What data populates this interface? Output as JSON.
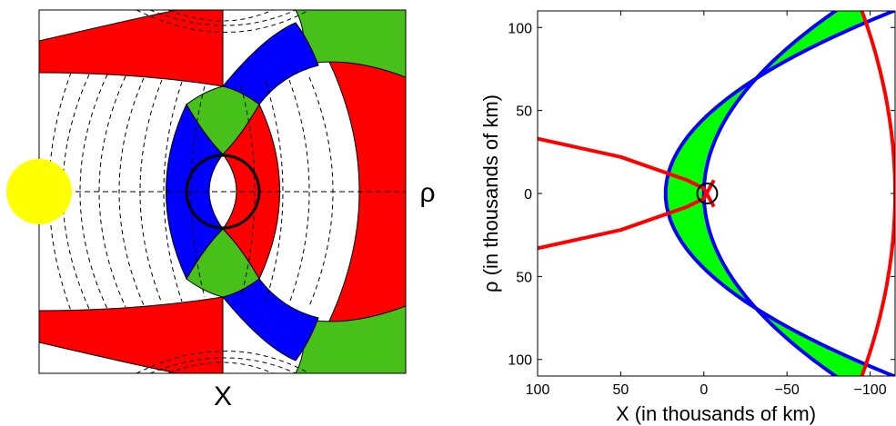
{
  "left_panel": {
    "x_axis_symbol": "X",
    "rho_symbol": "ρ",
    "colors": {
      "red": "#ff0000",
      "blue": "#0000ff",
      "green": "#47c01a",
      "sun": "#ffff00",
      "white": "#ffffff"
    }
  },
  "chart_data": {
    "type": "line",
    "xlabel": "X (in thousands of km)",
    "ylabel": "ρ (in thousands of km)",
    "xlim": [
      100,
      -115
    ],
    "ylim": [
      -110,
      110
    ],
    "x_reversed": true,
    "x_ticks": [
      "100",
      "50",
      "0",
      "−50",
      "−100"
    ],
    "y_ticks": [
      "100",
      "50",
      "0",
      "50",
      "100"
    ],
    "series": [
      {
        "color": "#0000ff",
        "shape": "parabola",
        "vertex_x": 23,
        "a": 0.01134,
        "note_values": [
          [
            23,
            0
          ],
          [
            -115,
            110
          ]
        ]
      },
      {
        "color": "#0000ff",
        "shape": "parabola",
        "vertex_x": 0,
        "a": 0.00655,
        "note_values": [
          [
            0,
            0
          ],
          [
            -67,
            100
          ]
        ]
      },
      {
        "color": "#ff0000",
        "shape": "parabola_left",
        "points": [
          [
            100,
            33
          ],
          [
            50,
            22
          ],
          [
            10,
            8
          ],
          [
            0,
            3
          ]
        ]
      },
      {
        "color": "#ff0000",
        "shape": "arc",
        "points": [
          [
            -95,
            110
          ],
          [
            -115,
            0
          ],
          [
            -95,
            -110
          ]
        ]
      },
      {
        "color": "#000000",
        "shape": "circle",
        "center": [
          -2,
          0
        ],
        "r": 6
      },
      {
        "color": "#00ff00",
        "shape": "fill_band",
        "between": "blue parabolas, x > red arc"
      }
    ]
  }
}
